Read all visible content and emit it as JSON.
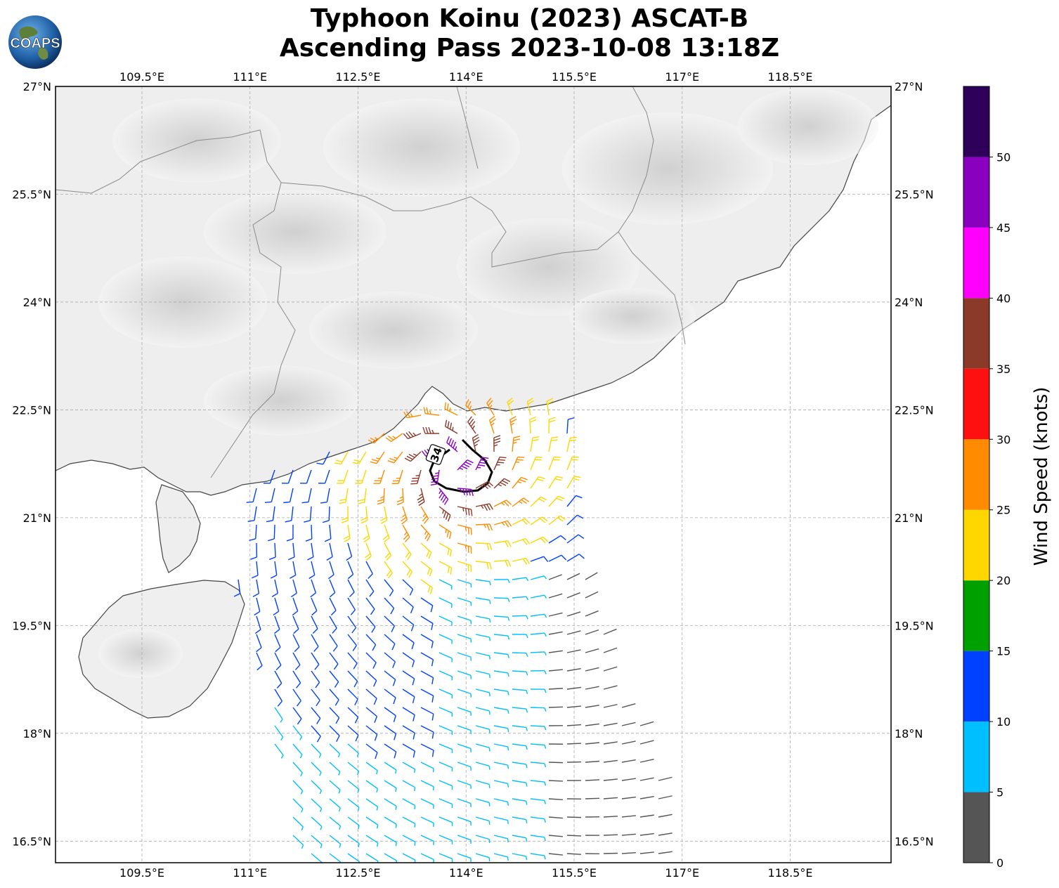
{
  "title": {
    "line1": "Typhoon Koinu (2023) ASCAT-B",
    "line2": "Ascending Pass 2023-10-08 13:18Z"
  },
  "logo": {
    "text": "COAPS",
    "icon": "globe-logo-icon"
  },
  "map": {
    "lon_ticks": [
      "109.5°E",
      "111°E",
      "112.5°E",
      "114°E",
      "115.5°E",
      "117°E",
      "118.5°E"
    ],
    "lat_ticks": [
      "27°N",
      "25.5°N",
      "24°N",
      "22.5°N",
      "21°N",
      "19.5°N",
      "18°N",
      "16.5°N"
    ],
    "gridlines": true,
    "background": "grayscale terrain",
    "wind34_label": "34"
  },
  "colorbar": {
    "label": "Wind Speed (knots)",
    "ticks": [
      "0",
      "5",
      "10",
      "15",
      "20",
      "25",
      "30",
      "35",
      "40",
      "45",
      "50"
    ],
    "colors": [
      "#555555",
      "#00bfff",
      "#0040ff",
      "#00a000",
      "#ffd700",
      "#ff8c00",
      "#ff1010",
      "#8b3a2a",
      "#ff00ff",
      "#8a00bf",
      "#2e005a"
    ]
  },
  "chart_data": {
    "type": "scatter",
    "title": "Typhoon Koinu (2023) ASCAT-B Ascending Pass 2023-10-08 13:18Z",
    "x": "longitude",
    "y": "latitude",
    "xlim": [
      108.3,
      119.9
    ],
    "ylim": [
      16.2,
      27.0
    ],
    "value_label": "Wind Speed (knots)",
    "value_range": [
      0,
      55
    ],
    "center": {
      "lon": 113.8,
      "lat": 21.7
    },
    "wind34_radius_deg": 0.45
  }
}
